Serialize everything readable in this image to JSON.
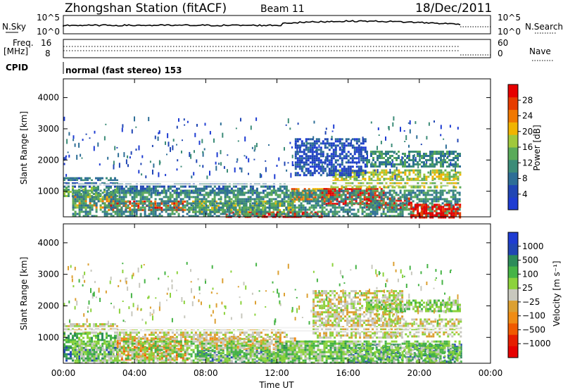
{
  "header": {
    "station": "Zhongshan Station (fitACF)",
    "beam": "Beam 11",
    "date": "18/Dec/2011"
  },
  "top_panels": {
    "nsky_label": "N.Sky",
    "nsearch_label": "N.Search",
    "freq_label_1": "Freq.",
    "freq_label_2": "[MHz]",
    "nave_label": "Nave",
    "cpid_label": "CPID",
    "cpid_text": "normal (fast stereo) 153",
    "noise_ticks": [
      "10^5",
      "10^0"
    ],
    "noise_ticks_right": [
      "10^5",
      "10^0"
    ],
    "freq_ticks": [
      "16",
      "8"
    ],
    "nave_ticks": [
      "60",
      "0"
    ]
  },
  "colors": {
    "power": [
      "#1e3cd2",
      "#2046b4",
      "#2d6e96",
      "#3c8c78",
      "#5aaa5a",
      "#a0c83c",
      "#f0b400",
      "#f07800",
      "#e63c00",
      "#e60000"
    ],
    "velocity": [
      "#1e3cd2",
      "#2046b4",
      "#2d8c5a",
      "#46b446",
      "#8cd23c",
      "#c8c8be",
      "#dca032",
      "#f08c14",
      "#f05a00",
      "#e61e00",
      "#e60000"
    ]
  },
  "chart_data": [
    {
      "type": "heatmap",
      "panel": "power",
      "ylabel": "Slant Range [km]",
      "ylim": [
        180,
        4600
      ],
      "yticks": [
        1000,
        2000,
        3000,
        4000
      ],
      "colorbar_label": "Power [dB]",
      "colorbar_ticks": [
        4,
        8,
        12,
        16,
        20,
        24,
        28
      ],
      "colorbar_range": [
        0,
        32
      ],
      "bands": [
        {
          "t": [
            0.0,
            3.0
          ],
          "r": [
            1150,
            1450
          ],
          "level": 2
        },
        {
          "t": [
            0.0,
            3.0
          ],
          "r": [
            850,
            1150
          ],
          "level": 4
        },
        {
          "t": [
            0.5,
            3.0
          ],
          "r": [
            450,
            850
          ],
          "level": 6
        },
        {
          "t": [
            2.5,
            6.8
          ],
          "r": [
            400,
            700
          ],
          "level": 8
        },
        {
          "t": [
            3.0,
            12.5
          ],
          "r": [
            950,
            1250
          ],
          "level": 2
        },
        {
          "t": [
            7.0,
            13.0
          ],
          "r": [
            350,
            700
          ],
          "level": 5
        },
        {
          "t": [
            9.0,
            14.5
          ],
          "r": [
            180,
            350
          ],
          "level": 9
        },
        {
          "t": [
            12.8,
            15.0
          ],
          "r": [
            700,
            1100
          ],
          "level": 7
        },
        {
          "t": [
            14.5,
            18.0
          ],
          "r": [
            600,
            1100
          ],
          "level": 9
        },
        {
          "t": [
            17.0,
            19.5
          ],
          "r": [
            400,
            800
          ],
          "level": 9
        },
        {
          "t": [
            15.0,
            22.3
          ],
          "r": [
            1100,
            1700
          ],
          "level": 5
        },
        {
          "t": [
            17.0,
            22.3
          ],
          "r": [
            1800,
            2300
          ],
          "level": 3
        },
        {
          "t": [
            13.0,
            17.0
          ],
          "r": [
            1500,
            2700
          ],
          "level": 1
        },
        {
          "t": [
            0.5,
            22.3
          ],
          "r": [
            180,
            1050
          ],
          "level": 3
        },
        {
          "t": [
            19.5,
            22.3
          ],
          "r": [
            180,
            600
          ],
          "level": 9
        }
      ]
    },
    {
      "type": "heatmap",
      "panel": "velocity",
      "ylabel": "Slant Range [km]",
      "ylim": [
        180,
        4600
      ],
      "yticks": [
        1000,
        2000,
        3000,
        4000
      ],
      "colorbar_label": "Velocity [m s⁻¹]",
      "colorbar_ticks": [
        "1000",
        "500",
        "100",
        "25",
        "−25",
        "−100",
        "−500",
        "−1000"
      ],
      "bands": [
        {
          "t": [
            0.0,
            3.0
          ],
          "r": [
            1150,
            1450
          ],
          "level": 5
        },
        {
          "t": [
            0.0,
            3.0
          ],
          "r": [
            700,
            1150
          ],
          "level": 3
        },
        {
          "t": [
            0.0,
            3.0
          ],
          "r": [
            250,
            700
          ],
          "level": 2
        },
        {
          "t": [
            3.0,
            7.0
          ],
          "r": [
            300,
            1000
          ],
          "level": 7
        },
        {
          "t": [
            3.0,
            12.5
          ],
          "r": [
            950,
            1250
          ],
          "level": 5
        },
        {
          "t": [
            7.5,
            13.0
          ],
          "r": [
            600,
            1000
          ],
          "level": 6
        },
        {
          "t": [
            7.5,
            13.0
          ],
          "r": [
            250,
            600
          ],
          "level": 2
        },
        {
          "t": [
            12.0,
            16.0
          ],
          "r": [
            300,
            900
          ],
          "level": 3
        },
        {
          "t": [
            14.0,
            19.0
          ],
          "r": [
            1000,
            2500
          ],
          "level": 5
        },
        {
          "t": [
            16.0,
            22.3
          ],
          "r": [
            250,
            800
          ],
          "level": 2
        },
        {
          "t": [
            18.0,
            22.3
          ],
          "r": [
            1000,
            1600
          ],
          "level": 5
        },
        {
          "t": [
            17.0,
            22.3
          ],
          "r": [
            1800,
            2200
          ],
          "level": 4
        },
        {
          "t": [
            0.5,
            22.3
          ],
          "r": [
            180,
            900
          ],
          "level": 4
        }
      ]
    }
  ],
  "xaxis": {
    "ticks": [
      "00:00",
      "04:00",
      "08:00",
      "12:00",
      "16:00",
      "20:00",
      "00:00"
    ],
    "range": [
      0,
      24
    ],
    "label": "Time UT",
    "data_end_hour": 22.3
  }
}
